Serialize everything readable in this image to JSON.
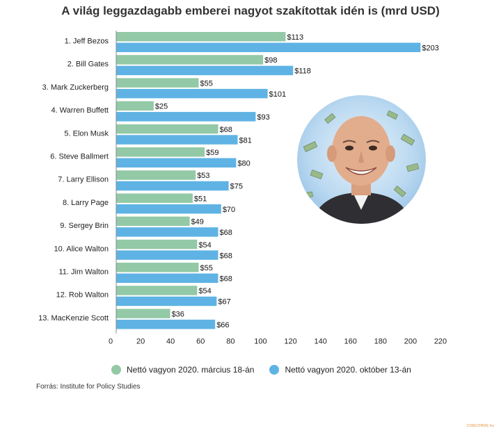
{
  "title": "A világ leggazdagabb emberei nagyot szakítottak idén is (mrd USD)",
  "source": "Forrás: Institute for Policy Studies",
  "watermark": "CONCORDE.hu",
  "colors": {
    "march": "#93c9a6",
    "october": "#5fb3e4",
    "axis": "#888888"
  },
  "chart_data": {
    "type": "bar",
    "orientation": "horizontal",
    "title": "A világ leggazdagabb emberei nagyot szakítottak idén is (mrd USD)",
    "categories": [
      "1. Jeff Bezos",
      "2. Bill Gates",
      "3. Mark Zuckerberg",
      "4. Warren Buffett",
      "5. Elon Musk",
      "6. Steve Ballmert",
      "7. Larry Ellison",
      "8. Larry Page",
      "9. Sergey Brin",
      "10. Alice Walton",
      "11. Jim Walton",
      "12. Rob Walton",
      "13. MacKenzie Scott"
    ],
    "series": [
      {
        "name": "Nettó vagyon 2020. március 18-án",
        "values": [
          113,
          98,
          55,
          25,
          68,
          59,
          53,
          51,
          49,
          54,
          55,
          54,
          36
        ],
        "labels": [
          "$113",
          "$98",
          "$55",
          "$25",
          "$68",
          "$59",
          "$53",
          "$51",
          "$49",
          "$54",
          "$55",
          "$54",
          "$36"
        ]
      },
      {
        "name": "Nettó vagyon 2020. október 13-án",
        "values": [
          203,
          118,
          101,
          93,
          81,
          80,
          75,
          70,
          68,
          68,
          68,
          67,
          66
        ],
        "labels": [
          "$203",
          "$118",
          "$101",
          "$93",
          "$81",
          "$80",
          "$75",
          "$70",
          "$68",
          "$68",
          "$68",
          "$67",
          "$66"
        ]
      }
    ],
    "xlim": [
      0,
      220
    ],
    "xticks": [
      "0",
      "20",
      "40",
      "60",
      "80",
      "100",
      "120",
      "140",
      "160",
      "180",
      "200",
      "220"
    ],
    "legend": "bottom",
    "grid": false
  }
}
